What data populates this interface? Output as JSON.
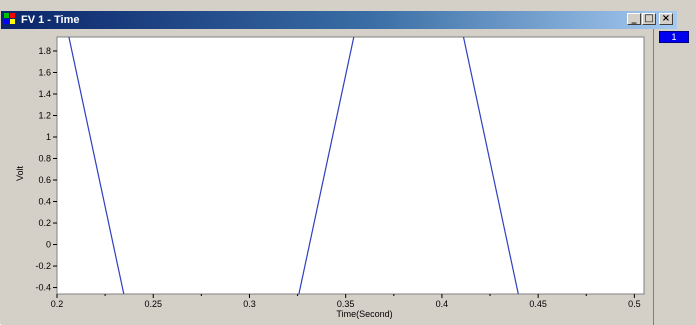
{
  "window": {
    "title": "FV 1 - Time",
    "controls": {
      "minimize": "_",
      "maximize": "□",
      "close": "×"
    }
  },
  "side_panel": {
    "chip_label": "1"
  },
  "icons": {
    "window_icon": "scope-window-icon",
    "minimize": "minimize-icon",
    "maximize": "maximize-icon",
    "close": "close-icon"
  },
  "colors": {
    "trace": "#2f3fbf",
    "plot_bg": "#ffffff",
    "frame": "#d4d0c8"
  },
  "chart_data": {
    "type": "line",
    "title": "",
    "xlabel": "Time(Second)",
    "ylabel": "Volt",
    "xlim": [
      0.2,
      0.505
    ],
    "ylim": [
      -0.46,
      1.93
    ],
    "xticks": [
      0.2,
      0.25,
      0.3,
      0.35,
      0.4,
      0.45,
      0.5
    ],
    "xtick_labels": [
      "0.2",
      "0.25",
      "0.3",
      "0.35",
      "0.4",
      "0.45",
      "0.5"
    ],
    "yticks": [
      -0.4,
      -0.2,
      0,
      0.2,
      0.4,
      0.6,
      0.8,
      1,
      1.2,
      1.4,
      1.6,
      1.8
    ],
    "ytick_labels": [
      "-0.4",
      "-0.2",
      "0",
      "0.2",
      "0.4",
      "0.6",
      "0.8",
      "1",
      "1.2",
      "1.4",
      "1.6",
      "1.8"
    ],
    "grid": false,
    "series": [
      {
        "values": [
          {
            "x": 0.2062,
            "y": 1.93
          },
          {
            "x": 0.2347,
            "y": -0.46
          }
        ]
      },
      {
        "values": [
          {
            "x": 0.3257,
            "y": -0.46
          },
          {
            "x": 0.3542,
            "y": 1.93
          }
        ]
      },
      {
        "values": [
          {
            "x": 0.4112,
            "y": 1.93
          },
          {
            "x": 0.4397,
            "y": -0.46
          }
        ]
      }
    ]
  }
}
